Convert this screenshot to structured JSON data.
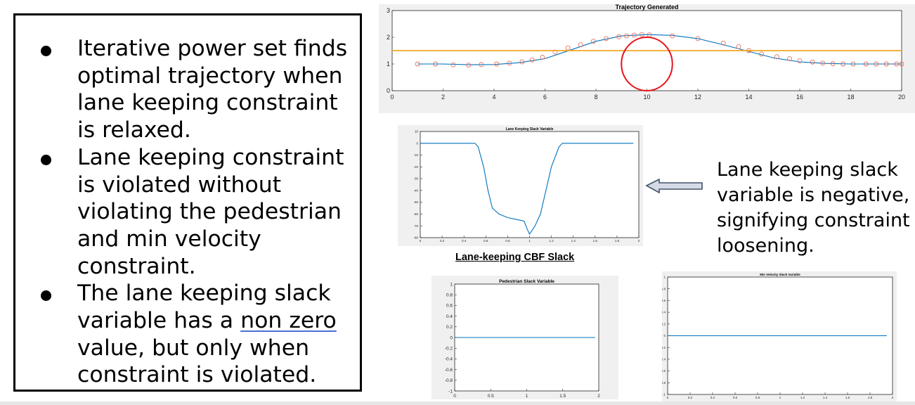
{
  "bullets": [
    {
      "segments": [
        {
          "text": "Iterative power set finds optimal trajectory when lane keeping constraint is relaxed."
        }
      ]
    },
    {
      "segments": [
        {
          "text": "Lane keeping constraint is violated without violating the pedestrian and min velocity constraint."
        }
      ]
    },
    {
      "segments": [
        {
          "text": "The lane keeping slack variable has a "
        },
        {
          "text": "non zero",
          "underline": true
        },
        {
          "text": " value, but only when constraint is violated."
        }
      ]
    }
  ],
  "side_note": "Lane keeping slack variable is negative, signifying constraint loosening.",
  "caption": "Lane-keeping CBF Slack",
  "arrow_icon": "left-arrow-icon",
  "colors": {
    "blue": "#0072bd",
    "orange": "#f5a623",
    "red": "#e8141c"
  },
  "chart_data": [
    {
      "id": "trajectory",
      "type": "line",
      "title": "Trajectory Generated",
      "xlim": [
        0,
        20
      ],
      "ylim": [
        0,
        3
      ],
      "xticks": [
        "0",
        "2",
        "4",
        "6",
        "8",
        "10",
        "12",
        "14",
        "16",
        "18",
        "20"
      ],
      "yticks": [
        "0",
        "1",
        "2",
        "3"
      ],
      "series": [
        {
          "kind": "line",
          "x": [
            1,
            2,
            3,
            4,
            5,
            6,
            7,
            8,
            9,
            10,
            11,
            12,
            13,
            14,
            15,
            16,
            17,
            18,
            19,
            20
          ],
          "y": [
            1.0,
            1.0,
            0.97,
            0.98,
            1.05,
            1.2,
            1.52,
            1.85,
            2.05,
            2.1,
            2.07,
            1.95,
            1.72,
            1.47,
            1.22,
            1.08,
            1.02,
            1.0,
            1.0,
            1.0
          ]
        },
        {
          "kind": "markers",
          "x": [
            1,
            1.7,
            2.4,
            3,
            3.5,
            4.1,
            4.6,
            5.1,
            5.5,
            5.9,
            6.4,
            6.9,
            7.4,
            7.9,
            8.4,
            8.9,
            9.2,
            9.5,
            9.8,
            10.1,
            11,
            12,
            13,
            13.6,
            14,
            14.5,
            15.1,
            15.6,
            16,
            16.5,
            16.9,
            17.3,
            17.7,
            18.1,
            18.6,
            19,
            19.4,
            19.8,
            20
          ],
          "y": [
            1.0,
            1.0,
            0.97,
            0.96,
            0.98,
            1.0,
            1.03,
            1.08,
            1.15,
            1.25,
            1.45,
            1.6,
            1.72,
            1.85,
            1.95,
            2.02,
            2.05,
            2.08,
            2.1,
            2.09,
            2.05,
            1.95,
            1.78,
            1.65,
            1.5,
            1.37,
            1.27,
            1.2,
            1.12,
            1.07,
            1.03,
            1.01,
            1.0,
            1.0,
            1.0,
            1.0,
            1.0,
            1.0,
            1.0
          ]
        },
        {
          "kind": "hline",
          "y": 1.5
        },
        {
          "kind": "circle",
          "cx": 10,
          "cy": 1.0,
          "r": 1.0
        }
      ]
    },
    {
      "id": "lane-keeping",
      "type": "line",
      "title": "Lane Keeping Slack Variable",
      "xlim": [
        0,
        2
      ],
      "ylim": [
        -80,
        10
      ],
      "xticks": [
        "0",
        "0.2",
        "0.4",
        "0.6",
        "0.8",
        "1",
        "1.2",
        "1.4",
        "1.6",
        "1.8",
        "2"
      ],
      "yticks": [
        "-80",
        "-70",
        "-60",
        "-50",
        "-40",
        "-30",
        "-20",
        "-10",
        "0",
        "10"
      ],
      "series": [
        {
          "kind": "line",
          "x": [
            0,
            0.5,
            0.53,
            0.58,
            0.62,
            0.66,
            0.72,
            0.8,
            0.9,
            0.95,
            0.98,
            1.0,
            1.05,
            1.1,
            1.15,
            1.2,
            1.27,
            1.3,
            1.35,
            1.5,
            1.95
          ],
          "y": [
            0,
            0,
            -3,
            -20,
            -40,
            -55,
            -60,
            -63,
            -65,
            -66,
            -73,
            -77,
            -70,
            -60,
            -40,
            -20,
            -3,
            0,
            0,
            0,
            0
          ]
        }
      ]
    },
    {
      "id": "pedestrian",
      "type": "line",
      "title": "Pedestrian Slack Variable",
      "xlim": [
        0,
        2
      ],
      "ylim": [
        -1,
        1
      ],
      "xticks": [
        "0",
        "0.5",
        "1",
        "1.5",
        "2"
      ],
      "yticks": [
        "-1",
        "-0.8",
        "-0.6",
        "-0.4",
        "-0.2",
        "0",
        "0.2",
        "0.4",
        "0.6",
        "0.8",
        "1"
      ],
      "series": [
        {
          "kind": "line",
          "x": [
            0,
            1.95
          ],
          "y": [
            0,
            0
          ]
        }
      ]
    },
    {
      "id": "min-velocity",
      "type": "line",
      "title": "Min Velocity Slack Variable",
      "xlim": [
        0,
        2
      ],
      "ylim": [
        -1,
        1
      ],
      "xticks": [
        "0",
        "0.2",
        "0.4",
        "0.6",
        "0.8",
        "1",
        "1.2",
        "1.4",
        "1.6",
        "1.8",
        "2"
      ],
      "yticks": [
        "-1",
        "-0.8",
        "-0.6",
        "-0.4",
        "-0.2",
        "0",
        "0.2",
        "0.4",
        "0.6",
        "0.8",
        "1"
      ],
      "series": [
        {
          "kind": "line",
          "x": [
            0,
            1.95
          ],
          "y": [
            0,
            0
          ]
        }
      ]
    }
  ]
}
